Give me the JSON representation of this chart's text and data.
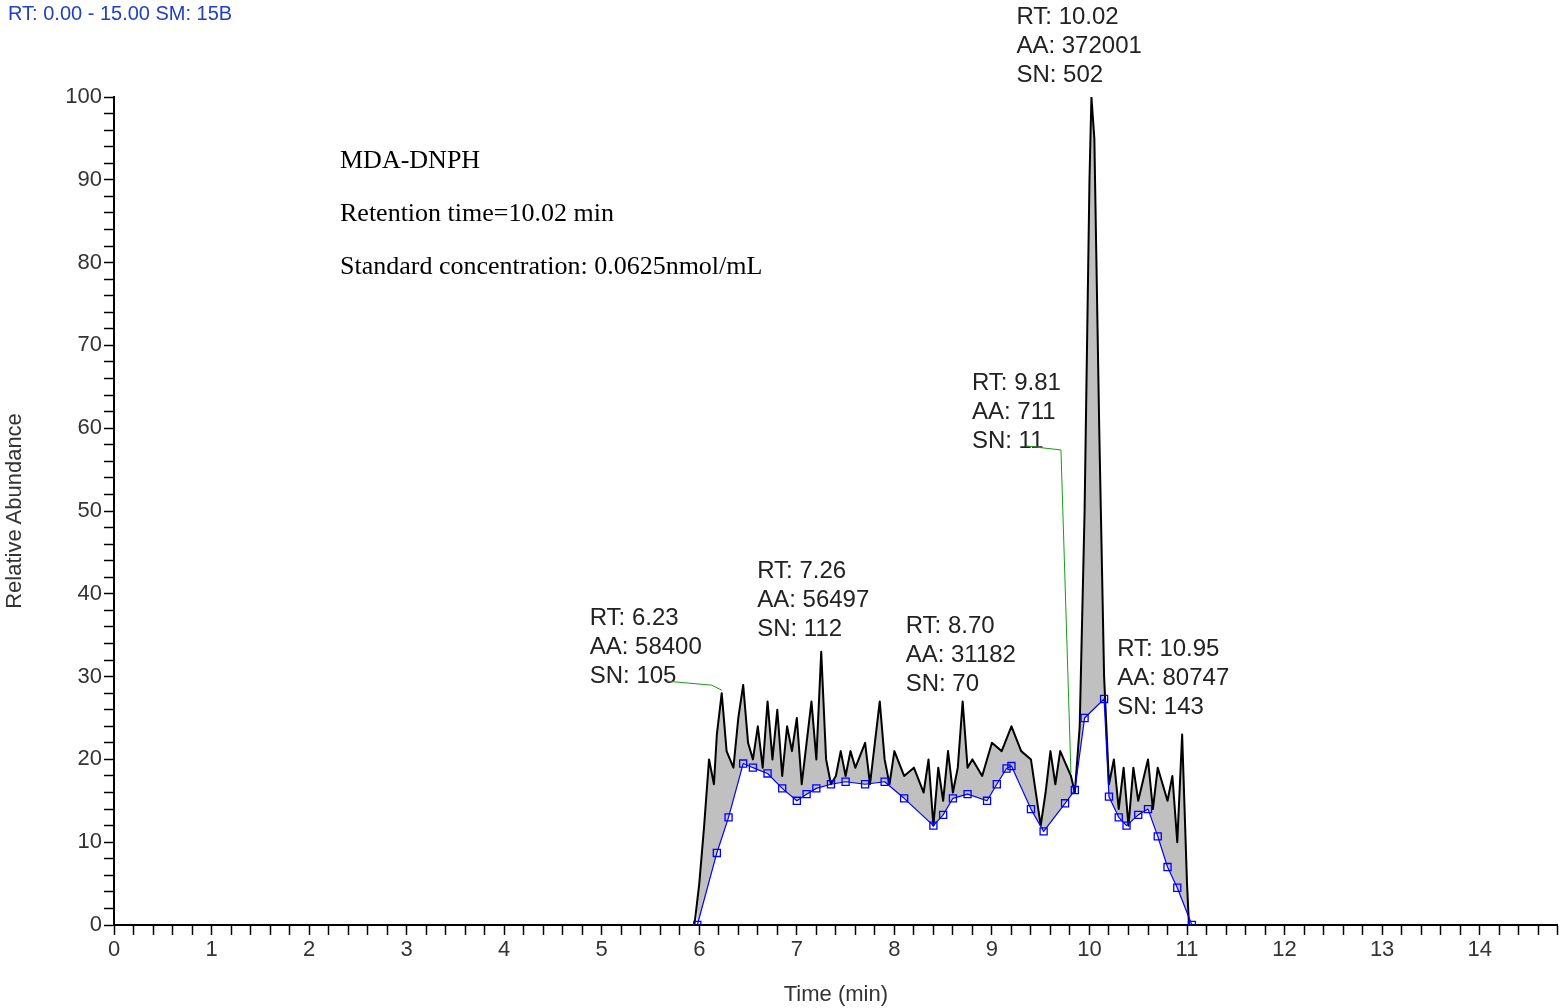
{
  "chart_data": {
    "type": "area",
    "xlabel": "Time (min)",
    "ylabel": "Relative Abundance",
    "xlim": [
      0,
      14.8
    ],
    "ylim": [
      0,
      100
    ],
    "xticks": [
      0,
      {
        "value": 0.2,
        "label": null
      },
      {
        "value": 0.4,
        "label": null
      },
      {
        "value": 0.6,
        "label": null
      },
      {
        "value": 0.8,
        "label": null
      },
      1,
      {
        "value": 1.2,
        "label": null
      },
      {
        "value": 1.4,
        "label": null
      },
      {
        "value": 1.6,
        "label": null
      },
      {
        "value": 1.8,
        "label": null
      },
      2,
      {
        "value": 2.2,
        "label": null
      },
      {
        "value": 2.4,
        "label": null
      },
      {
        "value": 2.6,
        "label": null
      },
      {
        "value": 2.8,
        "label": null
      },
      3,
      {
        "value": 3.2,
        "label": null
      },
      {
        "value": 3.4,
        "label": null
      },
      {
        "value": 3.6,
        "label": null
      },
      {
        "value": 3.8,
        "label": null
      },
      4,
      {
        "value": 4.2,
        "label": null
      },
      {
        "value": 4.4,
        "label": null
      },
      {
        "value": 4.6,
        "label": null
      },
      {
        "value": 4.8,
        "label": null
      },
      5,
      {
        "value": 5.2,
        "label": null
      },
      {
        "value": 5.4,
        "label": null
      },
      {
        "value": 5.6,
        "label": null
      },
      {
        "value": 5.8,
        "label": null
      },
      6,
      {
        "value": 6.2,
        "label": null
      },
      {
        "value": 6.4,
        "label": null
      },
      {
        "value": 6.6,
        "label": null
      },
      {
        "value": 6.8,
        "label": null
      },
      7,
      {
        "value": 7.2,
        "label": null
      },
      {
        "value": 7.4,
        "label": null
      },
      {
        "value": 7.6,
        "label": null
      },
      {
        "value": 7.8,
        "label": null
      },
      8,
      {
        "value": 8.2,
        "label": null
      },
      {
        "value": 8.4,
        "label": null
      },
      {
        "value": 8.6,
        "label": null
      },
      {
        "value": 8.8,
        "label": null
      },
      9,
      {
        "value": 9.2,
        "label": null
      },
      {
        "value": 9.4,
        "label": null
      },
      {
        "value": 9.6,
        "label": null
      },
      {
        "value": 9.8,
        "label": null
      },
      10,
      {
        "value": 10.2,
        "label": null
      },
      {
        "value": 10.4,
        "label": null
      },
      {
        "value": 10.6,
        "label": null
      },
      {
        "value": 10.8,
        "label": null
      },
      11,
      {
        "value": 11.2,
        "label": null
      },
      {
        "value": 11.4,
        "label": null
      },
      {
        "value": 11.6,
        "label": null
      },
      {
        "value": 11.8,
        "label": null
      },
      12,
      {
        "value": 12.2,
        "label": null
      },
      {
        "value": 12.4,
        "label": null
      },
      {
        "value": 12.6,
        "label": null
      },
      {
        "value": 12.8,
        "label": null
      },
      13,
      {
        "value": 13.2,
        "label": null
      },
      {
        "value": 13.4,
        "label": null
      },
      {
        "value": 13.6,
        "label": null
      },
      {
        "value": 13.8,
        "label": null
      },
      14,
      {
        "value": 14.2,
        "label": null
      },
      {
        "value": 14.4,
        "label": null
      },
      {
        "value": 14.6,
        "label": null
      },
      {
        "value": 14.8,
        "label": null
      }
    ],
    "yticks": [
      0,
      {
        "value": 2,
        "label": null
      },
      {
        "value": 4,
        "label": null
      },
      {
        "value": 6,
        "label": null
      },
      {
        "value": 8,
        "label": null
      },
      10,
      {
        "value": 12,
        "label": null
      },
      {
        "value": 14,
        "label": null
      },
      {
        "value": 16,
        "label": null
      },
      {
        "value": 18,
        "label": null
      },
      20,
      {
        "value": 22,
        "label": null
      },
      {
        "value": 24,
        "label": null
      },
      {
        "value": 26,
        "label": null
      },
      {
        "value": 28,
        "label": null
      },
      30,
      {
        "value": 32,
        "label": null
      },
      {
        "value": 34,
        "label": null
      },
      {
        "value": 36,
        "label": null
      },
      {
        "value": 38,
        "label": null
      },
      40,
      {
        "value": 42,
        "label": null
      },
      {
        "value": 44,
        "label": null
      },
      {
        "value": 46,
        "label": null
      },
      {
        "value": 48,
        "label": null
      },
      50,
      {
        "value": 52,
        "label": null
      },
      {
        "value": 54,
        "label": null
      },
      {
        "value": 56,
        "label": null
      },
      {
        "value": 58,
        "label": null
      },
      60,
      {
        "value": 62,
        "label": null
      },
      {
        "value": 64,
        "label": null
      },
      {
        "value": 66,
        "label": null
      },
      {
        "value": 68,
        "label": null
      },
      70,
      {
        "value": 72,
        "label": null
      },
      {
        "value": 74,
        "label": null
      },
      {
        "value": 76,
        "label": null
      },
      {
        "value": 78,
        "label": null
      },
      80,
      {
        "value": 82,
        "label": null
      },
      {
        "value": 84,
        "label": null
      },
      {
        "value": 86,
        "label": null
      },
      {
        "value": 88,
        "label": null
      },
      90,
      {
        "value": 92,
        "label": null
      },
      {
        "value": 94,
        "label": null
      },
      {
        "value": 96,
        "label": null
      },
      {
        "value": 98,
        "label": null
      },
      100
    ],
    "grid": false,
    "legend": false,
    "series": [
      {
        "type": "area",
        "color": "#000000",
        "marker": "none",
        "x": [
          5.95,
          6.0,
          6.05,
          6.1,
          6.15,
          6.18,
          6.23,
          6.28,
          6.35,
          6.4,
          6.45,
          6.5,
          6.55,
          6.6,
          6.65,
          6.7,
          6.75,
          6.8,
          6.85,
          6.9,
          6.95,
          7.0,
          7.05,
          7.1,
          7.15,
          7.2,
          7.25,
          7.3,
          7.35,
          7.4,
          7.45,
          7.5,
          7.55,
          7.6,
          7.7,
          7.75,
          7.85,
          7.9,
          7.95,
          8.0,
          8.1,
          8.2,
          8.3,
          8.35,
          8.4,
          8.45,
          8.5,
          8.55,
          8.6,
          8.65,
          8.7,
          8.75,
          8.8,
          8.9,
          9.0,
          9.1,
          9.2,
          9.3,
          9.4,
          9.5,
          9.55,
          9.6,
          9.65,
          9.7,
          9.81,
          9.85,
          9.9,
          9.95,
          10.0,
          10.02,
          10.05,
          10.1,
          10.15,
          10.2,
          10.25,
          10.3,
          10.35,
          10.4,
          10.45,
          10.5,
          10.6,
          10.65,
          10.7,
          10.8,
          10.85,
          10.9,
          10.95,
          11.0,
          11.02
        ],
        "values": [
          0,
          5,
          12,
          20,
          17,
          23,
          28,
          21,
          19,
          25,
          29,
          22,
          20,
          24,
          19,
          27,
          20,
          26,
          18,
          24,
          21,
          25,
          17,
          22,
          27,
          20,
          33,
          20,
          17,
          18,
          21,
          18,
          21,
          19,
          22,
          17,
          27,
          20,
          17,
          21,
          18,
          19,
          16,
          20,
          12,
          19,
          15,
          21,
          16,
          19,
          27,
          19,
          20,
          18,
          22,
          21,
          24,
          21,
          20,
          12,
          16,
          21,
          17,
          21,
          18,
          16,
          24,
          50,
          90,
          100,
          95,
          60,
          30,
          17,
          20,
          14,
          19,
          12,
          19,
          15,
          20,
          14,
          19,
          15,
          18,
          10,
          23,
          5,
          0
        ]
      },
      {
        "type": "line",
        "color": "#0000ff",
        "marker": "square",
        "x": [
          5.98,
          6.18,
          6.3,
          6.45,
          6.55,
          6.7,
          6.85,
          7.0,
          7.1,
          7.2,
          7.35,
          7.5,
          7.7,
          7.9,
          8.1,
          8.4,
          8.5,
          8.6,
          8.75,
          8.95,
          9.05,
          9.15,
          9.2,
          9.4,
          9.53,
          9.75,
          9.85,
          9.95,
          10.15,
          10.2,
          10.3,
          10.38,
          10.5,
          10.6,
          10.7,
          10.8,
          10.9,
          11.05
        ],
        "values": [
          0,
          8.7,
          13,
          19.5,
          19,
          18.3,
          16.5,
          15,
          15.8,
          16.5,
          17,
          17.3,
          17,
          17.3,
          15.3,
          12,
          13.3,
          15.3,
          15.8,
          15,
          17,
          18.9,
          19.2,
          14,
          11.3,
          14.7,
          16.3,
          25,
          27.3,
          15.5,
          13,
          12,
          13.3,
          14,
          10.7,
          7,
          4.5,
          0
        ]
      }
    ],
    "annotations": [
      "RT: 0.00 - 15.00 SM: 15B",
      "MDA-DNPH",
      "Retention time=10.02 min",
      "Standard concentration: 0.0625nmol/mL",
      {
        "text": "RT: 6.23\nAA: 58400\nSN: 105",
        "x": 6.23,
        "y": 28
      },
      {
        "text": "RT: 7.26\nAA: 56497\nSN: 112",
        "x": 7.26,
        "y": 33
      },
      {
        "text": "RT: 8.70\nAA: 31182\nSN: 70",
        "x": 8.7,
        "y": 27
      },
      {
        "text": "RT: 9.81\nAA: 711\nSN: 11",
        "x": 9.81,
        "y": 18
      },
      {
        "text": "RT: 10.02\nAA: 372001\nSN: 502",
        "x": 10.02,
        "y": 100
      },
      {
        "text": "RT: 10.95\nAA: 80747\nSN: 143",
        "x": 10.95,
        "y": 23
      }
    ]
  }
}
